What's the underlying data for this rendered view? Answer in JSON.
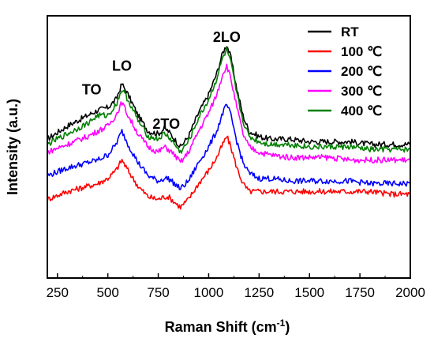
{
  "chart_data": {
    "type": "line",
    "title": "",
    "xlabel": "Raman Shift (cm",
    "xlabel_sup": "-1",
    "xlabel_close": ")",
    "ylabel": "Intensity (a.u.)",
    "xlim": [
      200,
      2000
    ],
    "ylim": [
      0,
      100
    ],
    "x_ticks": [
      250,
      500,
      750,
      1000,
      1250,
      1500,
      1750,
      2000
    ],
    "y_ticks_labeled": false,
    "grid": false,
    "legend_position": "top-right",
    "annotations": [
      {
        "text": "TO",
        "x": 420,
        "y": 70
      },
      {
        "text": "LO",
        "x": 570,
        "y": 79
      },
      {
        "text": "2TO",
        "x": 790,
        "y": 57
      },
      {
        "text": "2LO",
        "x": 1090,
        "y": 90
      }
    ],
    "x": [
      200,
      300,
      400,
      450,
      500,
      540,
      570,
      600,
      650,
      700,
      750,
      780,
      800,
      830,
      860,
      900,
      950,
      1000,
      1040,
      1070,
      1090,
      1110,
      1140,
      1170,
      1200,
      1250,
      1300,
      1400,
      1500,
      1600,
      1700,
      1800,
      1900,
      2000
    ],
    "series": [
      {
        "name": "RT",
        "color": "#000000",
        "values": [
          53,
          58,
          62,
          64,
          65,
          68,
          74,
          70,
          62,
          56,
          55,
          57,
          56,
          53,
          50,
          54,
          63,
          70,
          78,
          86,
          89,
          84,
          72,
          62,
          56,
          54,
          53,
          53,
          52,
          52,
          52,
          51,
          51,
          51
        ]
      },
      {
        "name": "100 ℃",
        "color": "#ff0000",
        "values": [
          30,
          33,
          35,
          36,
          38,
          41,
          45,
          41,
          35,
          31,
          30,
          31,
          31,
          29,
          27,
          30,
          36,
          41,
          46,
          51,
          54,
          50,
          42,
          36,
          33,
          33,
          33,
          33,
          33,
          33,
          33,
          33,
          32,
          32
        ]
      },
      {
        "name": "200 ℃",
        "color": "#0000ff",
        "values": [
          39,
          42,
          44,
          45,
          47,
          51,
          56,
          51,
          44,
          39,
          37,
          38,
          38,
          36,
          34,
          37,
          44,
          50,
          56,
          63,
          66,
          62,
          52,
          44,
          40,
          38,
          38,
          37,
          37,
          37,
          37,
          36,
          36,
          36
        ]
      },
      {
        "name": "300 ℃",
        "color": "#ff00ff",
        "values": [
          48,
          51,
          54,
          56,
          58,
          62,
          67,
          62,
          55,
          50,
          48,
          50,
          49,
          47,
          44,
          48,
          56,
          63,
          70,
          78,
          81,
          76,
          65,
          55,
          50,
          48,
          47,
          46,
          46,
          46,
          45,
          45,
          45,
          45
        ]
      },
      {
        "name": "400 ℃",
        "color": "#008000",
        "values": [
          51,
          55,
          59,
          62,
          62,
          66,
          72,
          68,
          60,
          54,
          53,
          55,
          54,
          51,
          48,
          52,
          61,
          68,
          76,
          84,
          87,
          82,
          70,
          60,
          54,
          52,
          51,
          51,
          50,
          50,
          50,
          49,
          49,
          49
        ]
      }
    ]
  }
}
